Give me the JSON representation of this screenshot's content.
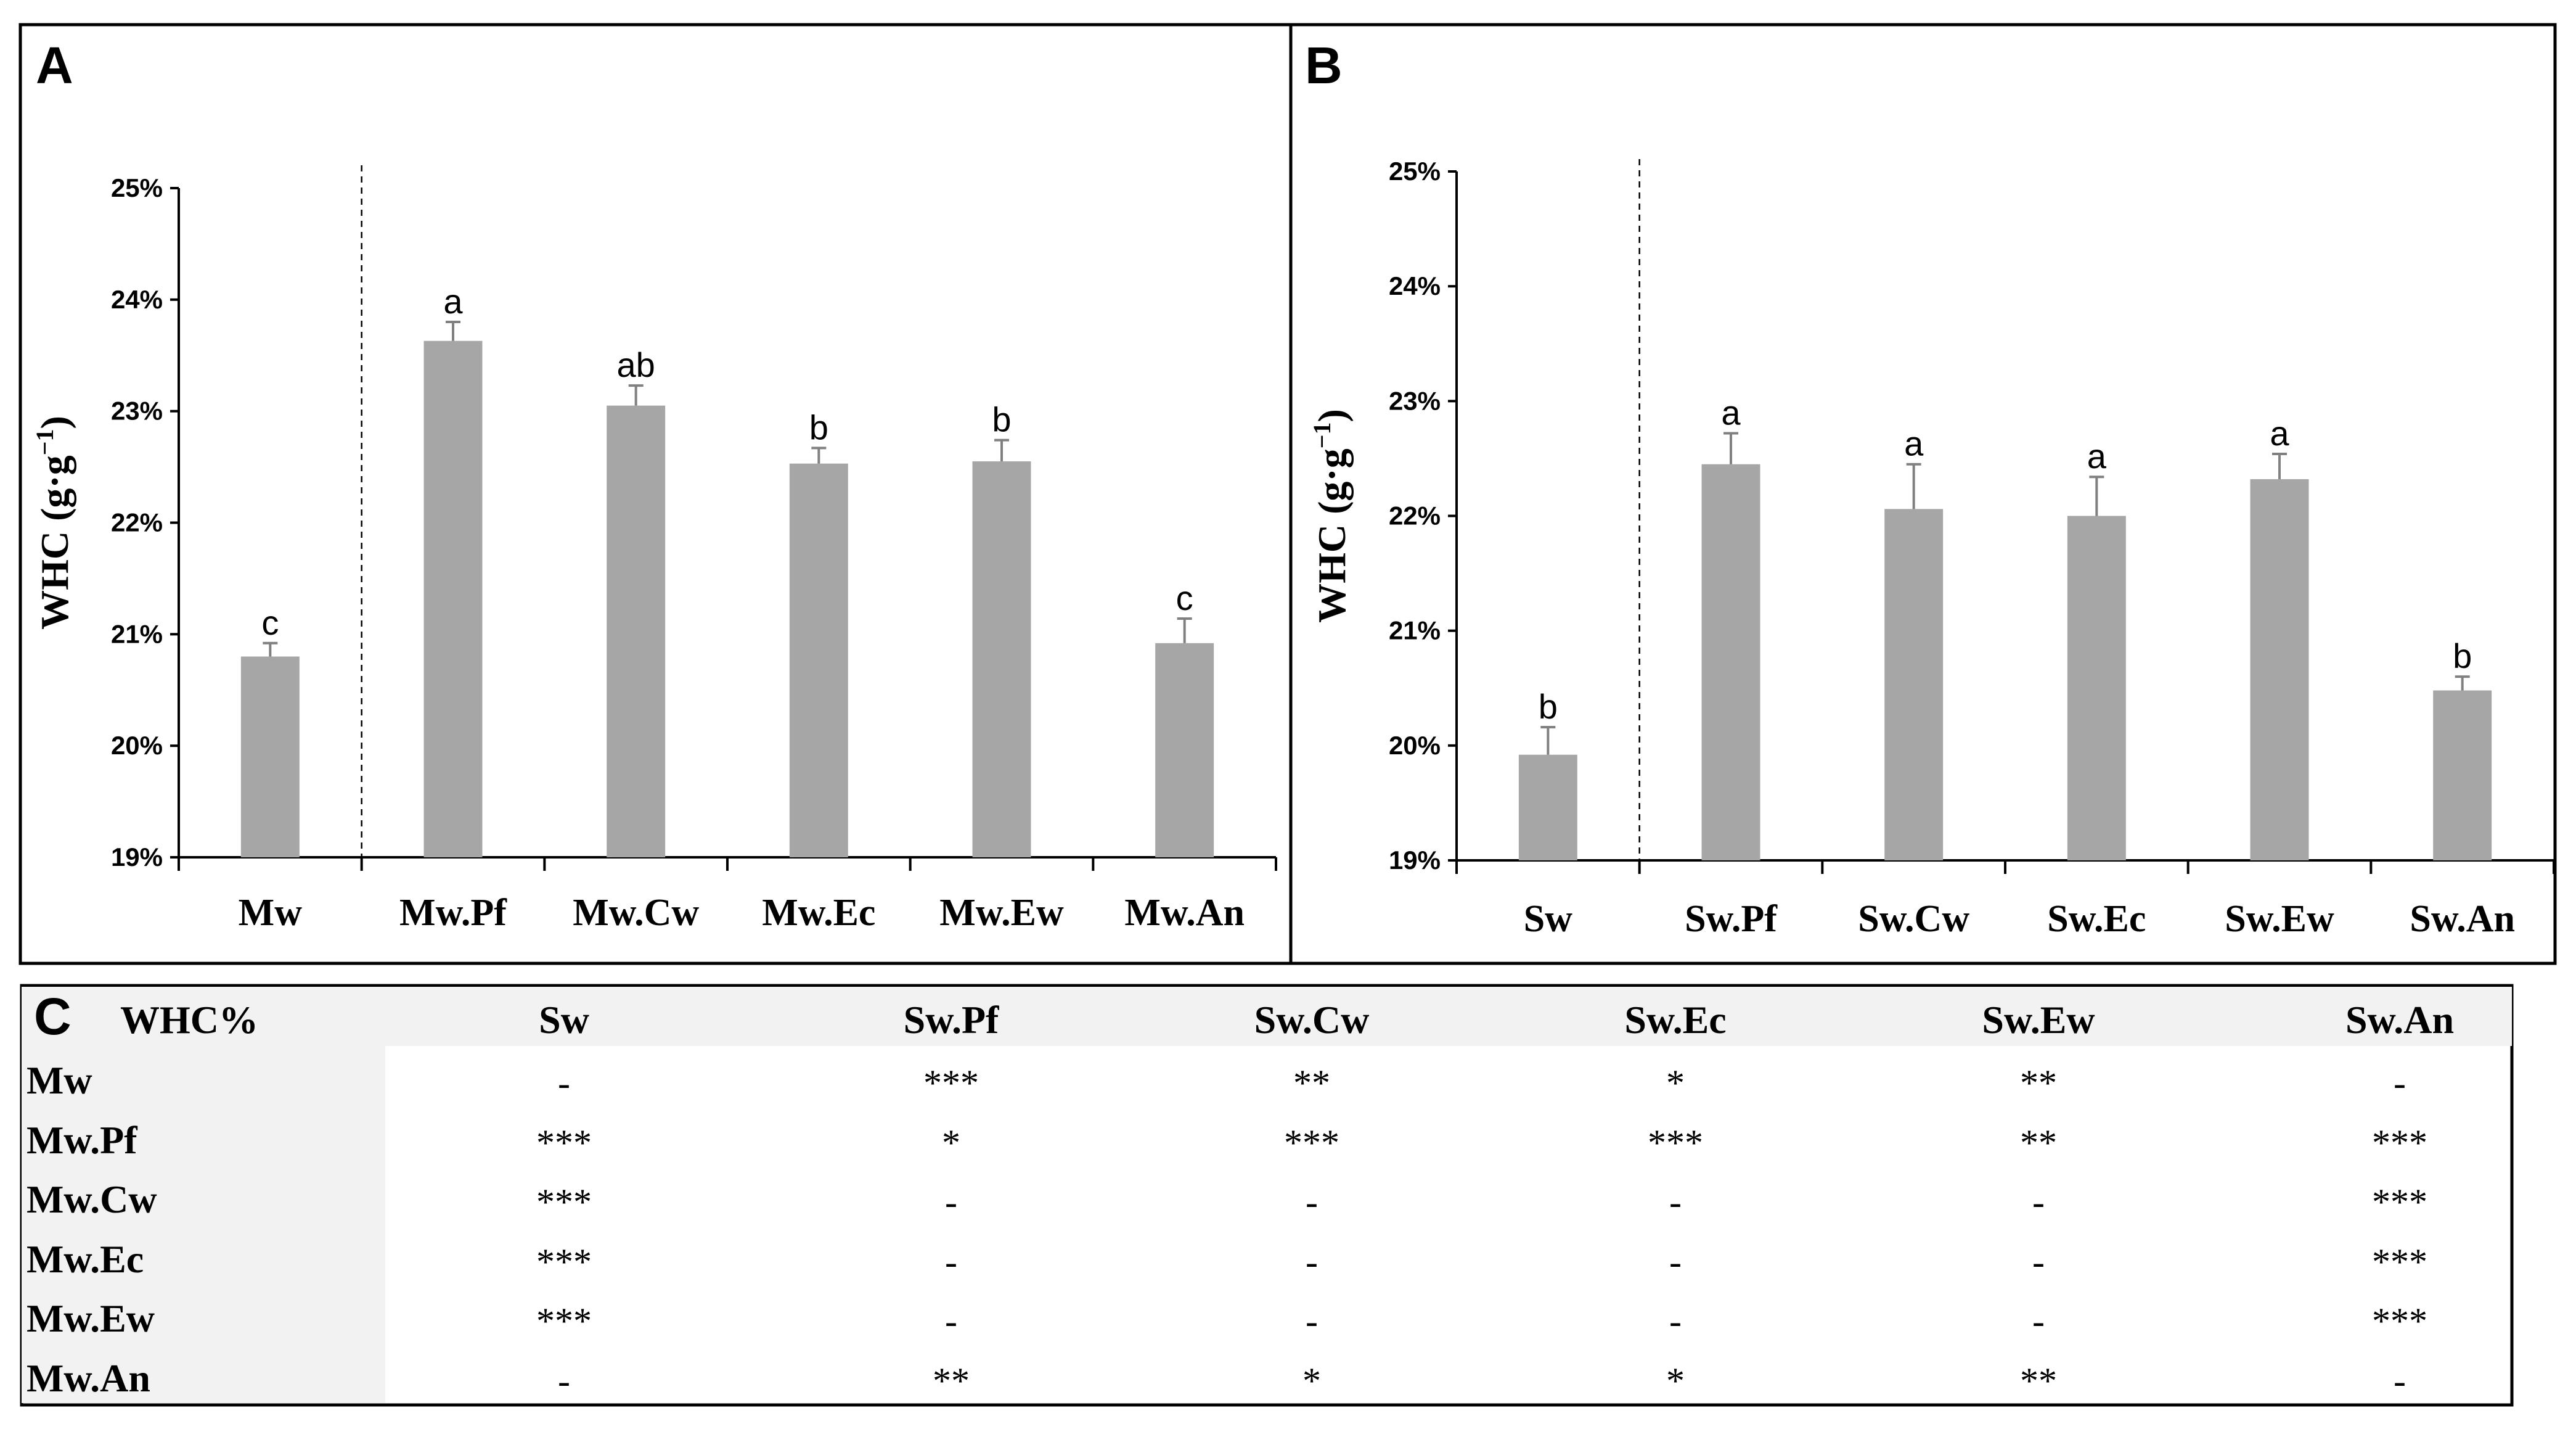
{
  "chart_data": [
    {
      "panel": "A",
      "type": "bar",
      "title": "",
      "xlabel": "",
      "ylabel": "WHC (g·g",
      "ylabel_superscript": "−1",
      "ylabel_close": ")",
      "ylim": [
        19,
        25
      ],
      "ytick_values": [
        19,
        20,
        21,
        22,
        23,
        24,
        25
      ],
      "ytick_labels": [
        "19%",
        "20%",
        "21%",
        "22%",
        "23%",
        "24%",
        "25%"
      ],
      "categories": [
        "Mw",
        "Mw.Pf",
        "Mw.Cw",
        "Mw.Ec",
        "Mw.Ew",
        "Mw.An"
      ],
      "values": [
        20.8,
        23.63,
        23.05,
        22.53,
        22.55,
        20.92
      ],
      "errors": [
        0.12,
        0.17,
        0.18,
        0.14,
        0.19,
        0.22
      ],
      "significance_letters": [
        "c",
        "a",
        "ab",
        "b",
        "b",
        "c"
      ],
      "bar_color": "#a6a6a6",
      "error_color": "#808080",
      "divider_after_category": 0,
      "grid": false,
      "legend": "none"
    },
    {
      "panel": "B",
      "type": "bar",
      "title": "",
      "xlabel": "",
      "ylabel": "WHC (g·g",
      "ylabel_superscript": "−1",
      "ylabel_close": ")",
      "ylim": [
        19,
        25
      ],
      "ytick_values": [
        19,
        20,
        21,
        22,
        23,
        24,
        25
      ],
      "ytick_labels": [
        "19%",
        "20%",
        "21%",
        "22%",
        "23%",
        "24%",
        "25%"
      ],
      "categories": [
        "Sw",
        "Sw.Pf",
        "Sw.Cw",
        "Sw.Ec",
        "Sw.Ew",
        "Sw.An"
      ],
      "values": [
        19.92,
        22.45,
        22.06,
        22.0,
        22.32,
        20.48
      ],
      "errors": [
        0.24,
        0.27,
        0.39,
        0.34,
        0.22,
        0.12
      ],
      "significance_letters": [
        "b",
        "a",
        "a",
        "a",
        "a",
        "b"
      ],
      "bar_color": "#a6a6a6",
      "error_color": "#808080",
      "divider_after_category": 0,
      "grid": false,
      "legend": "none"
    },
    {
      "panel": "C",
      "type": "table",
      "title": "WHC%",
      "columns": [
        "Sw",
        "Sw.Pf",
        "Sw.Cw",
        "Sw.Ec",
        "Sw.Ew",
        "Sw.An"
      ],
      "rows": [
        {
          "label": "Mw",
          "cells": [
            "-",
            "***",
            "**",
            "*",
            "**",
            "-"
          ]
        },
        {
          "label": "Mw.Pf",
          "cells": [
            "***",
            "*",
            "***",
            "***",
            "**",
            "***"
          ]
        },
        {
          "label": "Mw.Cw",
          "cells": [
            "***",
            "-",
            "-",
            "-",
            "-",
            "***"
          ]
        },
        {
          "label": "Mw.Ec",
          "cells": [
            "***",
            "-",
            "-",
            "-",
            "-",
            "***"
          ]
        },
        {
          "label": "Mw.Ew",
          "cells": [
            "***",
            "-",
            "-",
            "-",
            "-",
            "***"
          ]
        },
        {
          "label": "Mw.An",
          "cells": [
            "-",
            "**",
            "*",
            "*",
            "**",
            "-"
          ]
        }
      ],
      "header_background": "#f2f2f2"
    }
  ]
}
